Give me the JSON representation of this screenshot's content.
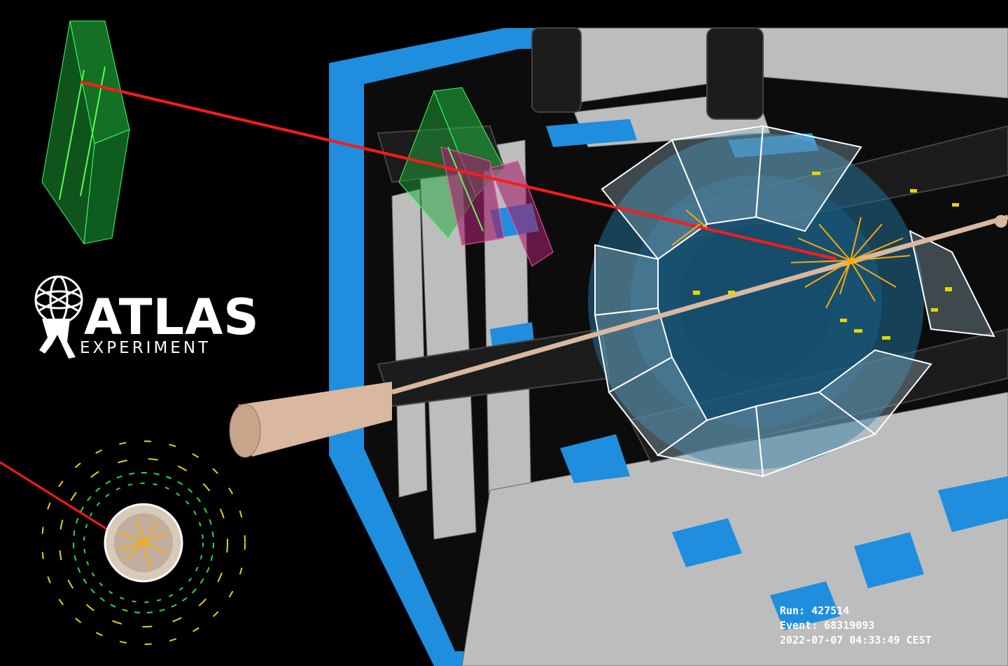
{
  "logo": {
    "title": "ATLAS",
    "subtitle": "EXPERIMENT"
  },
  "event": {
    "run_label": "Run: 427514",
    "event_label": "Event: 68319093",
    "datetime": "2022-07-07 04:33:49 CEST"
  },
  "colors": {
    "background": "#000000",
    "detector_blue": "#1f8ede",
    "detector_gray": "#b9b9b9",
    "muon_track": "#ff1a1a",
    "jets": "#ffaa00",
    "hits_green": "#22dd44",
    "beam_pipe": "#d9b89f"
  }
}
